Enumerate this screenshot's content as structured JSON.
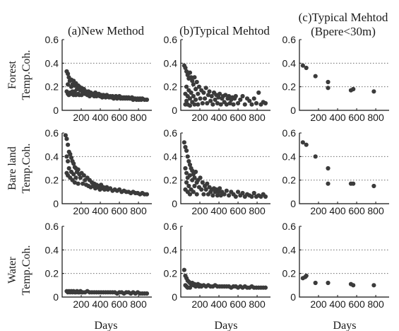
{
  "figure": {
    "column_titles": [
      "(a)New Method",
      "(b)Typical Mehtod",
      "(c)Typical Mehtod",
      "(Bpere<30m)"
    ],
    "row_names": [
      "Forest",
      "Bare land",
      "Water"
    ],
    "ylabel": "Temp.Coh.",
    "xlabel": "Days"
  },
  "chart_data": [
    {
      "type": "scatter",
      "title": "(a)New Method",
      "row_label": "Forest",
      "ylabel": "Temp.Coh.",
      "xlabel": "",
      "ylim": [
        0,
        0.6
      ],
      "xlim": [
        0,
        940
      ],
      "yticks": [
        0,
        0.2,
        0.4,
        0.6
      ],
      "xticks": [
        200,
        400,
        600,
        800
      ],
      "series": [
        {
          "x": [
            48,
            48,
            60,
            60,
            60,
            70,
            70,
            80,
            84,
            96,
            96,
            96,
            108,
            108,
            120,
            120,
            132,
            132,
            144,
            144,
            156,
            168,
            168,
            180,
            180,
            192,
            204,
            204,
            216,
            228,
            240,
            252,
            264,
            276,
            288,
            300,
            312,
            324,
            336,
            348,
            360,
            372,
            384,
            396,
            408,
            420,
            432,
            444,
            456,
            468,
            480,
            492,
            504,
            516,
            528,
            540,
            552,
            564,
            576,
            588,
            600,
            612,
            624,
            636,
            648,
            660,
            672,
            684,
            696,
            708,
            720,
            732,
            744,
            756,
            768,
            780,
            792,
            804,
            816,
            828,
            840,
            864,
            888
          ],
          "y": [
            0.33,
            0.16,
            0.31,
            0.22,
            0.14,
            0.28,
            0.13,
            0.25,
            0.15,
            0.26,
            0.2,
            0.14,
            0.22,
            0.16,
            0.25,
            0.13,
            0.21,
            0.16,
            0.23,
            0.13,
            0.18,
            0.21,
            0.14,
            0.2,
            0.13,
            0.17,
            0.19,
            0.13,
            0.15,
            0.18,
            0.14,
            0.16,
            0.13,
            0.16,
            0.12,
            0.15,
            0.13,
            0.14,
            0.12,
            0.15,
            0.12,
            0.13,
            0.14,
            0.12,
            0.13,
            0.11,
            0.13,
            0.12,
            0.11,
            0.13,
            0.12,
            0.11,
            0.12,
            0.11,
            0.12,
            0.1,
            0.11,
            0.12,
            0.1,
            0.11,
            0.12,
            0.1,
            0.11,
            0.1,
            0.11,
            0.1,
            0.11,
            0.1,
            0.11,
            0.1,
            0.1,
            0.11,
            0.09,
            0.1,
            0.1,
            0.09,
            0.1,
            0.09,
            0.1,
            0.09,
            0.1,
            0.09,
            0.09
          ]
        }
      ]
    },
    {
      "type": "scatter",
      "title": "(b)Typical Mehtod",
      "row_label": "Forest",
      "ylabel": "",
      "xlabel": "",
      "ylim": [
        0,
        0.6
      ],
      "xlim": [
        0,
        940
      ],
      "yticks": [
        0,
        0.2,
        0.4,
        0.6
      ],
      "xticks": [
        200,
        400,
        600,
        800
      ],
      "series": [
        {
          "x": [
            36,
            48,
            48,
            48,
            60,
            60,
            60,
            72,
            72,
            72,
            84,
            84,
            96,
            96,
            96,
            108,
            108,
            120,
            120,
            132,
            132,
            144,
            144,
            156,
            156,
            168,
            180,
            180,
            192,
            204,
            216,
            228,
            240,
            252,
            264,
            276,
            288,
            300,
            312,
            324,
            336,
            348,
            360,
            372,
            384,
            396,
            408,
            420,
            432,
            444,
            456,
            468,
            480,
            492,
            504,
            516,
            528,
            540,
            552,
            564,
            576,
            600,
            624,
            648,
            672,
            696,
            720,
            744,
            768,
            792,
            816,
            840,
            864,
            888
          ],
          "y": [
            0.38,
            0.36,
            0.14,
            0.05,
            0.33,
            0.2,
            0.08,
            0.3,
            0.12,
            0.05,
            0.27,
            0.17,
            0.32,
            0.1,
            0.04,
            0.28,
            0.15,
            0.25,
            0.07,
            0.22,
            0.12,
            0.28,
            0.05,
            0.18,
            0.09,
            0.24,
            0.14,
            0.05,
            0.2,
            0.1,
            0.17,
            0.06,
            0.15,
            0.1,
            0.19,
            0.06,
            0.13,
            0.16,
            0.08,
            0.12,
            0.05,
            0.15,
            0.09,
            0.13,
            0.06,
            0.11,
            0.14,
            0.05,
            0.1,
            0.12,
            0.07,
            0.13,
            0.05,
            0.1,
            0.12,
            0.06,
            0.09,
            0.11,
            0.05,
            0.1,
            0.12,
            0.06,
            0.09,
            0.12,
            0.05,
            0.1,
            0.08,
            0.05,
            0.1,
            0.06,
            0.15,
            0.05,
            0.07,
            0.06
          ]
        }
      ]
    },
    {
      "type": "scatter",
      "title": "(c)Typical Mehtod (Bpere<30m)",
      "row_label": "Forest",
      "ylabel": "",
      "xlabel": "",
      "ylim": [
        0,
        0.6
      ],
      "xlim": [
        0,
        940
      ],
      "yticks": [
        0,
        0.2,
        0.4,
        0.6
      ],
      "xticks": [
        200,
        400,
        600,
        800
      ],
      "series": [
        {
          "x": [
            36,
            72,
            168,
            300,
            300,
            540,
            564,
            780
          ],
          "y": [
            0.38,
            0.36,
            0.29,
            0.24,
            0.19,
            0.17,
            0.18,
            0.16
          ]
        }
      ]
    },
    {
      "type": "scatter",
      "title": "",
      "row_label": "Bare land",
      "ylabel": "Temp.Coh.",
      "xlabel": "",
      "ylim": [
        0,
        0.6
      ],
      "xlim": [
        0,
        940
      ],
      "yticks": [
        0,
        0.2,
        0.4,
        0.6
      ],
      "xticks": [
        200,
        400,
        600,
        800
      ],
      "series": [
        {
          "x": [
            36,
            48,
            48,
            48,
            60,
            60,
            60,
            72,
            72,
            84,
            84,
            96,
            96,
            108,
            108,
            120,
            120,
            132,
            132,
            144,
            144,
            156,
            168,
            168,
            180,
            192,
            204,
            216,
            228,
            240,
            252,
            264,
            276,
            288,
            300,
            312,
            324,
            336,
            348,
            360,
            372,
            384,
            396,
            408,
            420,
            432,
            444,
            456,
            468,
            480,
            504,
            528,
            552,
            576,
            600,
            624,
            648,
            672,
            696,
            720,
            744,
            768,
            792,
            816,
            840,
            864,
            888
          ],
          "y": [
            0.58,
            0.55,
            0.4,
            0.26,
            0.5,
            0.36,
            0.24,
            0.44,
            0.3,
            0.42,
            0.22,
            0.39,
            0.27,
            0.36,
            0.2,
            0.34,
            0.25,
            0.31,
            0.18,
            0.3,
            0.22,
            0.27,
            0.29,
            0.17,
            0.25,
            0.22,
            0.26,
            0.17,
            0.24,
            0.2,
            0.16,
            0.22,
            0.15,
            0.2,
            0.14,
            0.18,
            0.15,
            0.17,
            0.13,
            0.16,
            0.14,
            0.15,
            0.12,
            0.16,
            0.13,
            0.14,
            0.12,
            0.13,
            0.14,
            0.12,
            0.13,
            0.11,
            0.12,
            0.11,
            0.12,
            0.1,
            0.11,
            0.1,
            0.1,
            0.09,
            0.1,
            0.09,
            0.09,
            0.08,
            0.09,
            0.08,
            0.08
          ]
        }
      ]
    },
    {
      "type": "scatter",
      "title": "",
      "row_label": "Bare land",
      "ylabel": "",
      "xlabel": "",
      "ylim": [
        0,
        0.6
      ],
      "xlim": [
        0,
        940
      ],
      "yticks": [
        0,
        0.2,
        0.4,
        0.6
      ],
      "xticks": [
        200,
        400,
        600,
        800
      ],
      "series": [
        {
          "x": [
            36,
            48,
            48,
            48,
            60,
            60,
            60,
            72,
            72,
            72,
            84,
            84,
            96,
            96,
            96,
            108,
            108,
            120,
            120,
            132,
            132,
            144,
            144,
            156,
            168,
            168,
            180,
            192,
            204,
            216,
            228,
            240,
            252,
            264,
            276,
            288,
            300,
            312,
            324,
            336,
            348,
            360,
            372,
            384,
            396,
            408,
            420,
            432,
            456,
            480,
            504,
            528,
            552,
            576,
            600,
            624,
            648,
            672,
            696,
            720,
            744,
            768,
            792,
            816,
            840,
            864,
            888
          ],
          "y": [
            0.52,
            0.48,
            0.3,
            0.12,
            0.45,
            0.26,
            0.18,
            0.4,
            0.22,
            0.1,
            0.36,
            0.15,
            0.33,
            0.24,
            0.08,
            0.3,
            0.12,
            0.28,
            0.2,
            0.25,
            0.1,
            0.22,
            0.15,
            0.27,
            0.18,
            0.08,
            0.2,
            0.14,
            0.22,
            0.12,
            0.18,
            0.08,
            0.15,
            0.12,
            0.17,
            0.08,
            0.14,
            0.1,
            0.12,
            0.07,
            0.13,
            0.1,
            0.12,
            0.07,
            0.1,
            0.13,
            0.07,
            0.1,
            0.08,
            0.11,
            0.07,
            0.1,
            0.08,
            0.06,
            0.1,
            0.07,
            0.09,
            0.06,
            0.08,
            0.07,
            0.06,
            0.09,
            0.06,
            0.07,
            0.06,
            0.08,
            0.06
          ]
        }
      ]
    },
    {
      "type": "scatter",
      "title": "",
      "row_label": "Bare land",
      "ylabel": "",
      "xlabel": "",
      "ylim": [
        0,
        0.6
      ],
      "xlim": [
        0,
        940
      ],
      "yticks": [
        0,
        0.2,
        0.4,
        0.6
      ],
      "xticks": [
        200,
        400,
        600,
        800
      ],
      "series": [
        {
          "x": [
            36,
            72,
            168,
            300,
            300,
            540,
            564,
            780
          ],
          "y": [
            0.52,
            0.5,
            0.4,
            0.3,
            0.17,
            0.17,
            0.17,
            0.15
          ]
        }
      ]
    },
    {
      "type": "scatter",
      "title": "",
      "row_label": "Water",
      "ylabel": "Temp.Coh.",
      "xlabel": "Days",
      "ylim": [
        0,
        0.6
      ],
      "xlim": [
        0,
        940
      ],
      "yticks": [
        0,
        0.2,
        0.4,
        0.6
      ],
      "xticks": [
        200,
        400,
        600,
        800
      ],
      "series": [
        {
          "x": [
            48,
            60,
            72,
            84,
            96,
            108,
            120,
            132,
            144,
            156,
            168,
            180,
            192,
            204,
            216,
            240,
            264,
            288,
            312,
            336,
            360,
            384,
            408,
            432,
            456,
            480,
            504,
            528,
            552,
            576,
            600,
            624,
            648,
            672,
            696,
            720,
            744,
            768,
            792,
            816,
            840,
            864,
            888
          ],
          "y": [
            0.05,
            0.04,
            0.05,
            0.04,
            0.05,
            0.04,
            0.05,
            0.04,
            0.04,
            0.05,
            0.04,
            0.04,
            0.05,
            0.04,
            0.04,
            0.04,
            0.05,
            0.04,
            0.04,
            0.04,
            0.04,
            0.04,
            0.04,
            0.04,
            0.04,
            0.04,
            0.04,
            0.04,
            0.04,
            0.03,
            0.04,
            0.04,
            0.03,
            0.04,
            0.04,
            0.03,
            0.04,
            0.03,
            0.04,
            0.03,
            0.03,
            0.03,
            0.03
          ]
        }
      ]
    },
    {
      "type": "scatter",
      "title": "",
      "row_label": "Water",
      "ylabel": "",
      "xlabel": "Days",
      "ylim": [
        0,
        0.6
      ],
      "xlim": [
        0,
        940
      ],
      "yticks": [
        0,
        0.2,
        0.4,
        0.6
      ],
      "xticks": [
        200,
        400,
        600,
        800
      ],
      "series": [
        {
          "x": [
            36,
            48,
            48,
            60,
            60,
            72,
            72,
            84,
            96,
            96,
            108,
            120,
            132,
            144,
            156,
            168,
            180,
            192,
            204,
            216,
            240,
            264,
            288,
            312,
            336,
            360,
            384,
            408,
            432,
            456,
            480,
            504,
            528,
            552,
            576,
            600,
            624,
            648,
            672,
            696,
            720,
            744,
            768,
            792,
            816,
            840,
            864,
            888
          ],
          "y": [
            0.23,
            0.18,
            0.1,
            0.16,
            0.09,
            0.14,
            0.08,
            0.13,
            0.12,
            0.08,
            0.11,
            0.12,
            0.1,
            0.11,
            0.09,
            0.1,
            0.11,
            0.09,
            0.1,
            0.09,
            0.1,
            0.09,
            0.1,
            0.09,
            0.09,
            0.1,
            0.09,
            0.09,
            0.09,
            0.09,
            0.09,
            0.09,
            0.08,
            0.09,
            0.09,
            0.08,
            0.09,
            0.08,
            0.09,
            0.08,
            0.08,
            0.09,
            0.08,
            0.08,
            0.08,
            0.08,
            0.08,
            0.08
          ]
        }
      ]
    },
    {
      "type": "scatter",
      "title": "",
      "row_label": "Water",
      "ylabel": "",
      "xlabel": "Days",
      "ylim": [
        0,
        0.6
      ],
      "xlim": [
        0,
        940
      ],
      "yticks": [
        0,
        0.2,
        0.4,
        0.6
      ],
      "xticks": [
        200,
        400,
        600,
        800
      ],
      "series": [
        {
          "x": [
            36,
            60,
            72,
            168,
            300,
            540,
            564,
            780
          ],
          "y": [
            0.16,
            0.17,
            0.18,
            0.12,
            0.12,
            0.11,
            0.1,
            0.1
          ]
        }
      ]
    }
  ]
}
